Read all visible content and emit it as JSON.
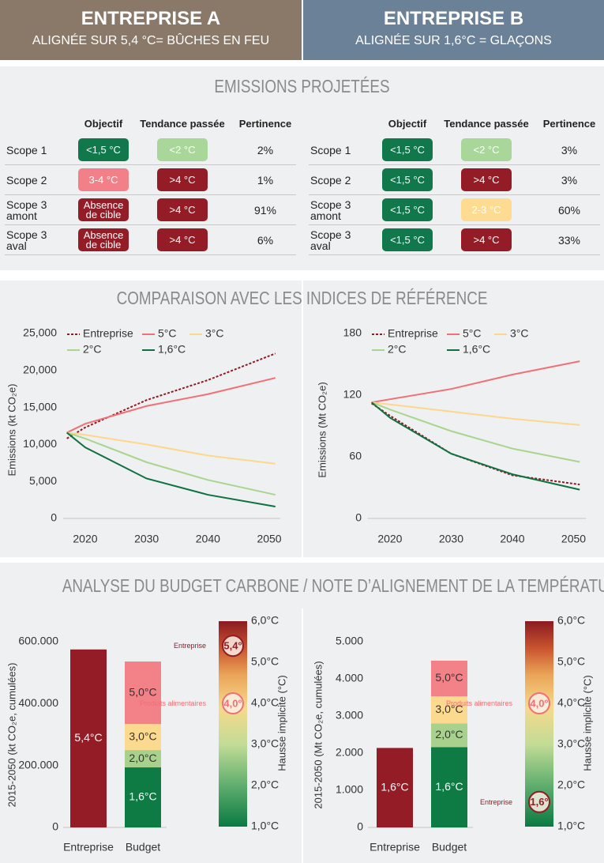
{
  "companies": [
    {
      "name": "ENTREPRISE A",
      "subtitle": "ALIGNÉE SUR 5,4 °C= BÛCHES EN FEU",
      "table": {
        "columns": [
          "Objectif",
          "Tendance passée",
          "Pertinence"
        ],
        "rows": [
          {
            "scope": "Scope 1",
            "cells": [
              {
                "text": "<1,5 °C",
                "color": "#10784a"
              },
              {
                "text": "<2 °C",
                "color": "#a9d79a"
              }
            ],
            "pertinence": "2%"
          },
          {
            "scope": "Scope 2",
            "cells": [
              {
                "text": "3-4 °C",
                "color": "#f28088"
              },
              {
                "text": ">4 °C",
                "color": "#931c27"
              }
            ],
            "pertinence": "1%"
          },
          {
            "scope": "Scope 3 amont",
            "cells": [
              {
                "text": "Absence de cible",
                "color": "#931c27"
              },
              {
                "text": ">4 °C",
                "color": "#931c27"
              }
            ],
            "pertinence": "91%"
          },
          {
            "scope": "Scope 3 aval",
            "cells": [
              {
                "text": "Absence de cible",
                "color": "#931c27"
              },
              {
                "text": ">4 °C",
                "color": "#931c27"
              }
            ],
            "pertinence": "6%"
          }
        ]
      }
    },
    {
      "name": "ENTREPRISE B",
      "subtitle": "ALIGNÉE SUR 1,6°C = GLAÇONS",
      "table": {
        "columns": [
          "Objectif",
          "Tendance passée",
          "Pertinence"
        ],
        "rows": [
          {
            "scope": "Scope 1",
            "cells": [
              {
                "text": "<1,5 °C",
                "color": "#10784a"
              },
              {
                "text": "<2 °C",
                "color": "#a9d79a"
              }
            ],
            "pertinence": "3%"
          },
          {
            "scope": "Scope 2",
            "cells": [
              {
                "text": "<1,5 °C",
                "color": "#10784a"
              },
              {
                "text": ">4 °C",
                "color": "#931c27"
              }
            ],
            "pertinence": "3%"
          },
          {
            "scope": "Scope 3 amont",
            "cells": [
              {
                "text": "<1,5 °C",
                "color": "#10784a"
              },
              {
                "text": "2-3 °C",
                "color": "#fddc92"
              }
            ],
            "pertinence": "60%"
          },
          {
            "scope": "Scope 3 aval",
            "cells": [
              {
                "text": "<1,5 °C",
                "color": "#10784a"
              },
              {
                "text": ">4 °C",
                "color": "#931c27"
              }
            ],
            "pertinence": "33%"
          }
        ]
      }
    }
  ],
  "sections": [
    "EMISSIONS PROJETÉES",
    "COMPARAISON AVEC LES INDICES DE RÉFÉRENCE",
    "ANALYSE DU BUDGET CARBONE / NOTE D’ALIGNEMENT DE LA TEMPÉRATURE"
  ],
  "chart_data": [
    {
      "type": "line",
      "y_label": "Emissions (kt CO₂e)",
      "x": [
        2017,
        2020,
        2030,
        2040,
        2051
      ],
      "xlim": [
        2016.4,
        2051.8
      ],
      "xticks": [
        2020,
        2030,
        2040,
        2050
      ],
      "ylim": [
        0,
        25000
      ],
      "yticks": [
        0,
        {
          "value": 5000,
          "label": "5,000"
        },
        {
          "value": 10000,
          "label": "10,000"
        },
        {
          "value": 15000,
          "label": "15,000"
        },
        {
          "value": 20000,
          "label": "20,000"
        },
        {
          "value": 25000,
          "label": "25,000"
        }
      ],
      "series": [
        {
          "name": "Entreprise",
          "color": "#8e1b25",
          "style": "dotted",
          "values": [
            10800,
            12300,
            16000,
            18700,
            22300
          ]
        },
        {
          "name": "5°C",
          "color": "#f07077",
          "values": [
            11600,
            12800,
            15200,
            16800,
            19000
          ]
        },
        {
          "name": "3°C",
          "color": "#fdd78a",
          "values": [
            11600,
            11300,
            10000,
            8500,
            7400
          ]
        },
        {
          "name": "2°C",
          "color": "#a8d68e",
          "values": [
            11600,
            10800,
            7600,
            5200,
            3200
          ]
        },
        {
          "name": "1,6°C",
          "color": "#0f7040",
          "values": [
            11600,
            9600,
            5400,
            3200,
            1600
          ]
        }
      ]
    },
    {
      "type": "line",
      "y_label": "Emissions (Mt CO₂e)",
      "x": [
        2017,
        2020,
        2030,
        2040,
        2051
      ],
      "xlim": [
        2016.4,
        2052
      ],
      "xticks": [
        2020,
        2030,
        2040,
        2050
      ],
      "ylim": [
        0,
        180
      ],
      "yticks": [
        0,
        60,
        120,
        180
      ],
      "series": [
        {
          "name": "Entreprise",
          "color": "#8e1b25",
          "style": "dotted",
          "values": [
            112,
            100,
            63,
            42,
            33
          ]
        },
        {
          "name": "5°C",
          "color": "#f07077",
          "values": [
            113,
            116,
            126,
            140,
            153
          ]
        },
        {
          "name": "3°C",
          "color": "#fdd78a",
          "values": [
            113,
            111,
            104,
            97,
            91
          ]
        },
        {
          "name": "2°C",
          "color": "#a8d68e",
          "values": [
            113,
            106,
            85,
            68,
            55
          ]
        },
        {
          "name": "1,6°C",
          "color": "#0f7040",
          "values": [
            113,
            98,
            63,
            43,
            28
          ]
        }
      ]
    },
    {
      "type": "budget",
      "y_label": "2015-2050 (kt CO₂e, cumulées)",
      "ylim": [
        0,
        600000
      ],
      "yticks": [
        0,
        {
          "value": 200000,
          "label": "200.000"
        },
        {
          "value": 400000,
          "label": "400.000"
        },
        {
          "value": 600000,
          "label": "600.000"
        }
      ],
      "bars": [
        {
          "category": "Entreprise",
          "segments": [
            {
              "label": "5,4°C",
              "value": 575000,
              "color": "#931c27"
            }
          ]
        },
        {
          "category": "Budget",
          "segments": [
            {
              "label": "1,6°C",
              "value": 194000,
              "color": "#0e7a44"
            },
            {
              "label": "2,0°C",
              "value": 56000,
              "color": "#a9d18e"
            },
            {
              "label": "3,0°C",
              "value": 84000,
              "color": "#fbd98e"
            },
            {
              "label": "5,0°C",
              "value": 202000,
              "color": "#f28188"
            }
          ]
        }
      ],
      "gauge": {
        "label": "Hausse implicite (°C)",
        "ylim": [
          1,
          6
        ],
        "yticks": [
          {
            "value": 1,
            "label": "1,0°C"
          },
          {
            "value": 2,
            "label": "2,0°C"
          },
          {
            "value": 3,
            "label": "3,0°C"
          },
          {
            "value": 4,
            "label": "4,0°C"
          },
          {
            "value": 5,
            "label": "5,0°C"
          },
          {
            "value": 6,
            "label": "6,0°C"
          }
        ],
        "markers": [
          {
            "name": "Entreprise",
            "value": 5.4,
            "label": "5,4°",
            "color": "#931c27"
          },
          {
            "name": "Produits alimentaires",
            "value": 4.0,
            "label": "4,0°",
            "color": "#f07077"
          }
        ]
      }
    },
    {
      "type": "budget",
      "y_label": "2015-2050 (Mt CO₂e, cumulées)",
      "ylim": [
        0,
        5000
      ],
      "yticks": [
        0,
        {
          "value": 1000,
          "label": "1.000"
        },
        {
          "value": 2000,
          "label": "2.000"
        },
        {
          "value": 3000,
          "label": "3.000"
        },
        {
          "value": 4000,
          "label": "4.000"
        },
        {
          "value": 5000,
          "label": "5.000"
        }
      ],
      "bars": [
        {
          "category": "Entreprise",
          "segments": [
            {
              "label": "1,6°C",
              "value": 2140,
              "color": "#931c27"
            }
          ]
        },
        {
          "category": "Budget",
          "segments": [
            {
              "label": "1,6°C",
              "value": 2160,
              "color": "#0e7a44"
            },
            {
              "label": "2,0°C",
              "value": 640,
              "color": "#a9d18e"
            },
            {
              "label": "3,0°C",
              "value": 730,
              "color": "#fbd98e"
            },
            {
              "label": "5,0°C",
              "value": 960,
              "color": "#f28188"
            }
          ]
        }
      ],
      "gauge": {
        "label": "Hausse implicite (°C)",
        "ylim": [
          1,
          6
        ],
        "yticks": [
          {
            "value": 1,
            "label": "1,0°C"
          },
          {
            "value": 2,
            "label": "2,0°C"
          },
          {
            "value": 3,
            "label": "3,0°C"
          },
          {
            "value": 4,
            "label": "4,0°C"
          },
          {
            "value": 5,
            "label": "5,0°C"
          },
          {
            "value": 6,
            "label": "6,0°C"
          }
        ],
        "markers": [
          {
            "name": "Produits alimentaires",
            "value": 4.0,
            "label": "4,0°",
            "color": "#f07077"
          },
          {
            "name": "Entreprise",
            "value": 1.6,
            "label": "1,6°",
            "color": "#931c27"
          }
        ]
      }
    }
  ]
}
